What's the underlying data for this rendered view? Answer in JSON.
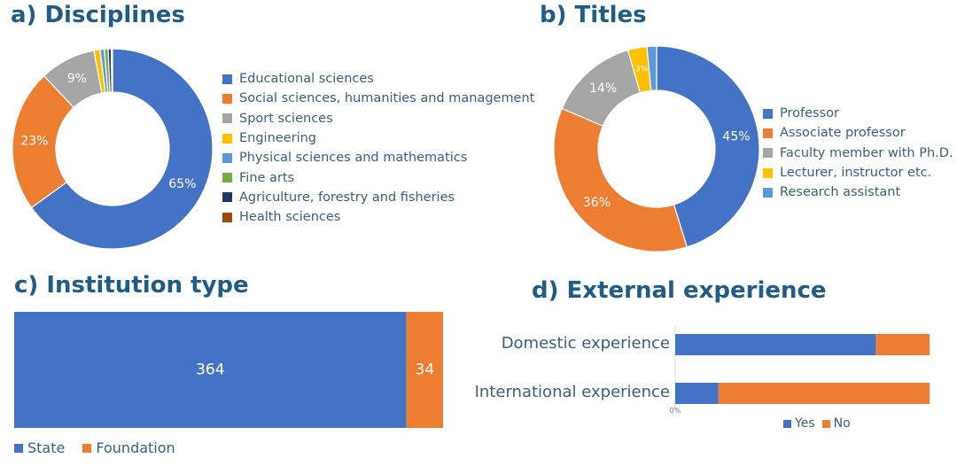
{
  "panels": {
    "a": "a) Disciplines",
    "b": "b) Titles",
    "c": "c) Institution type",
    "d": "d) External experience"
  },
  "chart_data": [
    {
      "type": "pie",
      "title": "a) Disciplines",
      "categories": [
        "Educational sciences",
        "Social sciences, humanities and management",
        "Sport sciences",
        "Engineering",
        "Physical sciences and mathematics",
        "Fine arts",
        "Agriculture, forestry and fisheries",
        "Health sciences"
      ],
      "values": [
        65,
        23,
        9,
        1,
        0.7,
        0.6,
        0.5,
        0.2
      ],
      "data_labels": [
        "65%",
        "23%",
        "9%",
        "",
        "",
        "",
        "",
        ""
      ],
      "colors": [
        "#4472c4",
        "#ed7d31",
        "#a5a5a5",
        "#ffc000",
        "#5b9bd5",
        "#70ad47",
        "#1f3864",
        "#9e480e"
      ],
      "legend_placement": "right"
    },
    {
      "type": "pie",
      "title": "b) Titles",
      "categories": [
        "Professor",
        "Associate professor",
        "Faculty member with Ph.D.",
        "Lecturer, instructor etc.",
        "Research assistant"
      ],
      "values": [
        45,
        36,
        14,
        3,
        1.5
      ],
      "data_labels": [
        "45%",
        "36%",
        "14%",
        "3%",
        ""
      ],
      "colors": [
        "#4472c4",
        "#ed7d31",
        "#a5a5a5",
        "#ffc000",
        "#5b9bd5"
      ],
      "legend_placement": "right"
    },
    {
      "type": "bar",
      "title": "c) Institution type",
      "orientation": "horizontal-stacked",
      "categories": [
        "State",
        "Foundation"
      ],
      "values": [
        364,
        34
      ],
      "data_labels": [
        "364",
        "34"
      ],
      "colors": [
        "#4472c4",
        "#ed7d31"
      ],
      "legend_placement": "bottom-left"
    },
    {
      "type": "bar",
      "title": "d) External experience",
      "orientation": "horizontal-stacked-100",
      "categories": [
        "Domestic experience",
        "International experience"
      ],
      "series": [
        {
          "name": "Yes",
          "values": [
            79,
            17
          ]
        },
        {
          "name": "No",
          "values": [
            21,
            83
          ]
        }
      ],
      "xtick_labels": [
        "0%"
      ],
      "xlim": [
        0,
        100
      ],
      "colors": [
        "#4472c4",
        "#ed7d31"
      ],
      "legend_placement": "bottom"
    }
  ]
}
